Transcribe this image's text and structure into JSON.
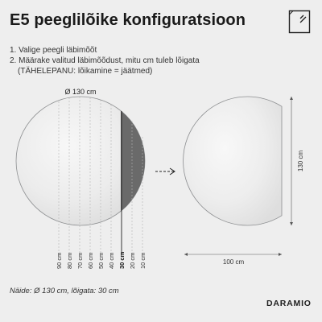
{
  "title": "E5 peeglilõike konfiguratsioon",
  "steps": [
    "1. Valige peegli läbimõõt",
    "2. Määrake valitud läbimõõdust, mitu cm tuleb lõigata",
    "(TÄHELEPANU: lõikamine = jäätmed)"
  ],
  "diagram": {
    "diameter_label": "Ø 130 cm",
    "cut_labels": [
      "90 cm",
      "80 cm",
      "70 cm",
      "60 cm",
      "50 cm",
      "40 cm",
      "30 cm",
      "20 cm",
      "10 cm"
    ],
    "selected_cut": "30 cm",
    "result_width_label": "100 cm",
    "result_height_label": "130 cm"
  },
  "caption": "Näide: Ø 130 cm, lõigata: 30 cm",
  "brand": "DARAMIO",
  "colors": {
    "background": "#eeeeee",
    "mirror_edge": "#8d8f91",
    "cut_off_part": "#6a6a6a",
    "guide_line": "#b5b5b5"
  },
  "icons": {
    "top_right": "mirror-icon",
    "arrow": "arrow-right-icon"
  }
}
